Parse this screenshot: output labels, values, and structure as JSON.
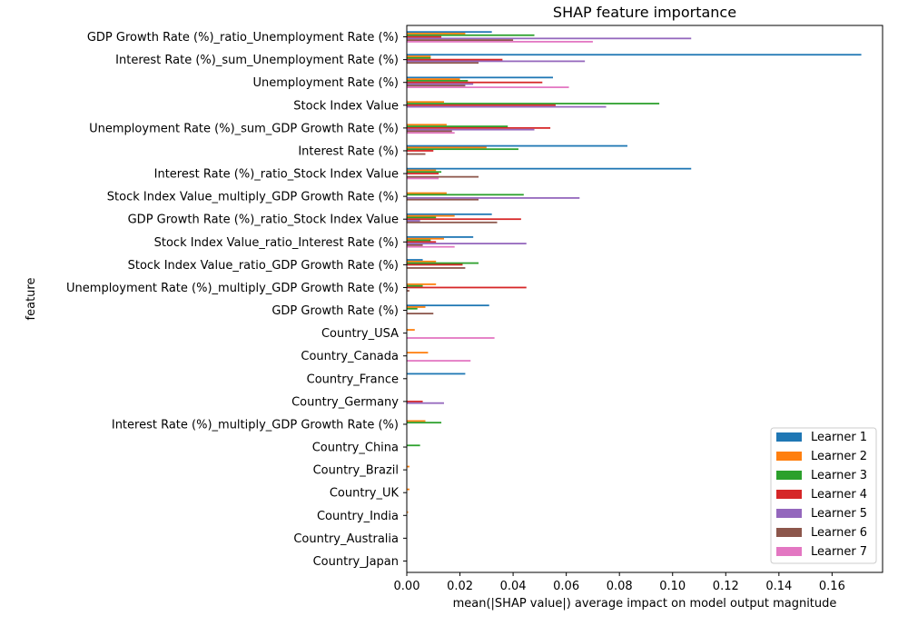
{
  "chart_data": {
    "type": "bar",
    "orientation": "horizontal",
    "title": "SHAP feature importance",
    "xlabel": "mean(|SHAP value|) average impact on model output magnitude",
    "ylabel": "feature",
    "xlim": [
      0.0,
      0.179
    ],
    "xticks": [
      "0.00",
      "0.02",
      "0.04",
      "0.06",
      "0.08",
      "0.10",
      "0.12",
      "0.14",
      "0.16"
    ],
    "grid": false,
    "legend_position": "lower-right",
    "categories": [
      "GDP Growth Rate (%)_ratio_Unemployment Rate (%)",
      "Interest Rate (%)_sum_Unemployment Rate (%)",
      "Unemployment Rate (%)",
      "Stock Index Value",
      "Unemployment Rate (%)_sum_GDP Growth Rate (%)",
      "Interest Rate (%)",
      "Interest Rate (%)_ratio_Stock Index Value",
      "Stock Index Value_multiply_GDP Growth Rate (%)",
      "GDP Growth Rate (%)_ratio_Stock Index Value",
      "Stock Index Value_ratio_Interest Rate (%)",
      "Stock Index Value_ratio_GDP Growth Rate (%)",
      "Unemployment Rate (%)_multiply_GDP Growth Rate (%)",
      "GDP Growth Rate (%)",
      "Country_USA",
      "Country_Canada",
      "Country_France",
      "Country_Germany",
      "Interest Rate (%)_multiply_GDP Growth Rate (%)",
      "Country_China",
      "Country_Brazil",
      "Country_UK",
      "Country_India",
      "Country_Australia",
      "Country_Japan"
    ],
    "series": [
      {
        "name": "Learner 1",
        "color": "#1f77b4",
        "values": [
          0.032,
          0.171,
          0.055,
          0.0,
          0.0,
          0.083,
          0.107,
          0.0,
          0.032,
          0.025,
          0.006,
          0.0,
          0.031,
          0.0,
          0.0,
          0.022,
          0.0,
          0.0,
          0.0,
          0.0,
          0.0,
          0.0,
          0.0,
          0.0
        ]
      },
      {
        "name": "Learner 2",
        "color": "#ff7f0e",
        "values": [
          0.022,
          0.009,
          0.02,
          0.014,
          0.015,
          0.03,
          0.011,
          0.015,
          0.018,
          0.014,
          0.011,
          0.011,
          0.007,
          0.003,
          0.008,
          0.0,
          0.0,
          0.007,
          0.0,
          0.001,
          0.001,
          0.0005,
          0.0,
          0.0
        ]
      },
      {
        "name": "Learner 3",
        "color": "#2ca02c",
        "values": [
          0.048,
          0.009,
          0.023,
          0.095,
          0.038,
          0.042,
          0.013,
          0.044,
          0.011,
          0.009,
          0.027,
          0.006,
          0.004,
          0.0,
          0.0,
          0.0,
          0.0,
          0.013,
          0.005,
          0.0,
          0.0,
          0.0,
          0.0,
          0.0
        ]
      },
      {
        "name": "Learner 4",
        "color": "#d62728",
        "values": [
          0.013,
          0.036,
          0.051,
          0.056,
          0.054,
          0.01,
          0.012,
          0.0,
          0.043,
          0.011,
          0.021,
          0.045,
          0.0,
          0.0,
          0.0,
          0.0,
          0.006,
          0.0,
          0.0,
          0.0,
          0.0,
          0.0,
          0.0,
          0.0
        ]
      },
      {
        "name": "Learner 5",
        "color": "#9467bd",
        "values": [
          0.107,
          0.067,
          0.025,
          0.075,
          0.048,
          0.0,
          0.0,
          0.065,
          0.005,
          0.045,
          0.0,
          0.0,
          0.0,
          0.0,
          0.0,
          0.0,
          0.014,
          0.0,
          0.0,
          0.0,
          0.0,
          0.0,
          0.0,
          0.0
        ]
      },
      {
        "name": "Learner 6",
        "color": "#8c564b",
        "values": [
          0.04,
          0.027,
          0.022,
          0.0,
          0.017,
          0.007,
          0.027,
          0.027,
          0.034,
          0.006,
          0.022,
          0.001,
          0.01,
          0.0,
          0.0,
          0.0,
          0.0,
          0.0,
          0.0,
          0.0,
          0.0,
          0.0,
          0.0,
          0.0
        ]
      },
      {
        "name": "Learner 7",
        "color": "#e377c2",
        "values": [
          0.07,
          0.0,
          0.061,
          0.0,
          0.018,
          0.0,
          0.012,
          0.0,
          0.0,
          0.018,
          0.0,
          0.0,
          0.0,
          0.033,
          0.024,
          0.0,
          0.0,
          0.0,
          0.0,
          0.0,
          0.0,
          0.0,
          0.0,
          0.0
        ]
      }
    ]
  }
}
